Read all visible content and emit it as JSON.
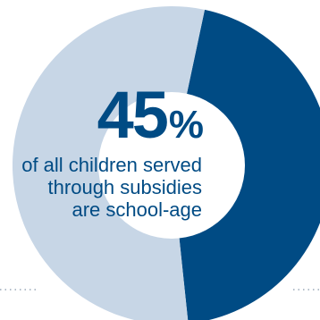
{
  "chart_data": {
    "type": "pie",
    "slices": [
      {
        "label": "school-age",
        "value": 45,
        "color": "#004b84"
      },
      {
        "label": "",
        "value": 55,
        "color": "#c7d6e6"
      }
    ],
    "inner_circle_color": "#ffffff",
    "callout": {
      "number": "45",
      "unit": "%",
      "lines": [
        "of all children served",
        "through subsidies",
        "are school-age"
      ]
    }
  }
}
